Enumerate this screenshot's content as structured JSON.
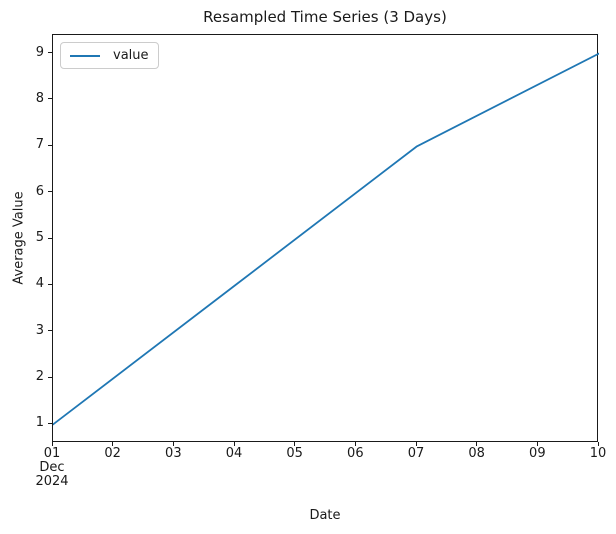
{
  "chart_data": {
    "type": "line",
    "title": "Resampled Time Series (3 Days)",
    "xlabel": "Date",
    "ylabel": "Average Value",
    "grid": false,
    "x_axis": {
      "unit": "day of month, December 2024",
      "lim": [
        1,
        10
      ],
      "ticks": [
        {
          "value": 1,
          "label": "01",
          "sublabels": [
            "Dec",
            "2024"
          ]
        },
        {
          "value": 2,
          "label": "02"
        },
        {
          "value": 3,
          "label": "03"
        },
        {
          "value": 4,
          "label": "04"
        },
        {
          "value": 5,
          "label": "05"
        },
        {
          "value": 6,
          "label": "06"
        },
        {
          "value": 7,
          "label": "07"
        },
        {
          "value": 8,
          "label": "08"
        },
        {
          "value": 9,
          "label": "09"
        },
        {
          "value": 10,
          "label": "10"
        }
      ]
    },
    "y_axis": {
      "lim": [
        0.6,
        9.4
      ],
      "ticks": [
        1,
        2,
        3,
        4,
        5,
        6,
        7,
        8,
        9
      ]
    },
    "series": [
      {
        "name": "value",
        "color": "#1f77b4",
        "x": [
          1,
          4,
          7,
          10
        ],
        "y": [
          1,
          4,
          7,
          9
        ]
      }
    ],
    "legend": {
      "position": "upper-left",
      "entries": [
        {
          "label": "value",
          "color": "#1f77b4"
        }
      ]
    }
  },
  "colors": {
    "line": "#1f77b4",
    "text": "#1a1a1a",
    "spine": "#1a1a1a",
    "legend_border": "#cccccc",
    "background": "#ffffff"
  }
}
